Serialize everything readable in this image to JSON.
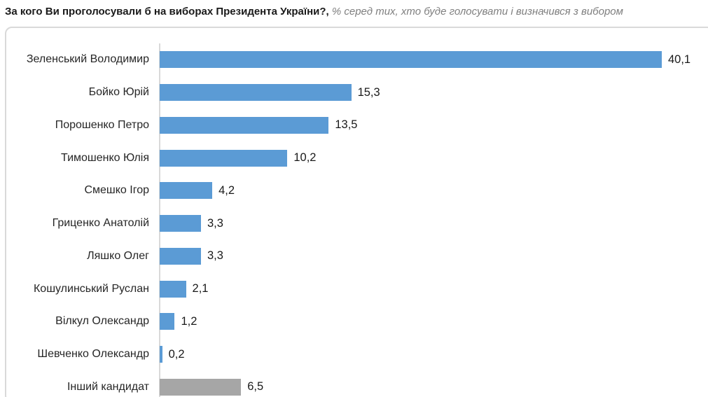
{
  "title": {
    "question": "За кого Ви проголосували б на виборах Президента України?,",
    "note": " % серед тих, хто буде голосувати і визначився з вибором"
  },
  "colors": {
    "bar_blue": "#5B9BD5",
    "bar_gray": "#A6A6A6",
    "axis_line": "#D9D9D9",
    "chart_border": "#D9D9D9",
    "note_text": "#7F7F7F",
    "label_text": "#262626"
  },
  "chart_data": {
    "type": "bar",
    "orientation": "horizontal",
    "title": "За кого Ви проголосували б на виборах Президента України?",
    "subtitle": "% серед тих, хто буде голосувати і визначився з вибором",
    "categories": [
      "Зеленський Володимир",
      "Бойко Юрій",
      "Порошенко Петро",
      "Тимошенко Юлія",
      "Смешко Ігор",
      "Гриценко Анатолій",
      "Ляшко Олег",
      "Кошулинський Руслан",
      "Вілкул Олександр",
      "Шевченко Олександр",
      "Інший кандидат"
    ],
    "values": [
      40.1,
      15.3,
      13.5,
      10.2,
      4.2,
      3.3,
      3.3,
      2.1,
      1.2,
      0.2,
      6.5
    ],
    "value_labels": [
      "40,1",
      "15,3",
      "13,5",
      "10,2",
      "4,2",
      "3,3",
      "3,3",
      "2,1",
      "1,2",
      "0,2",
      "6,5"
    ],
    "series_colors": [
      "#5B9BD5",
      "#5B9BD5",
      "#5B9BD5",
      "#5B9BD5",
      "#5B9BD5",
      "#5B9BD5",
      "#5B9BD5",
      "#5B9BD5",
      "#5B9BD5",
      "#5B9BD5",
      "#A6A6A6"
    ],
    "xlim": [
      0,
      45
    ],
    "grid": false,
    "legend": false,
    "decimal_separator": ","
  }
}
